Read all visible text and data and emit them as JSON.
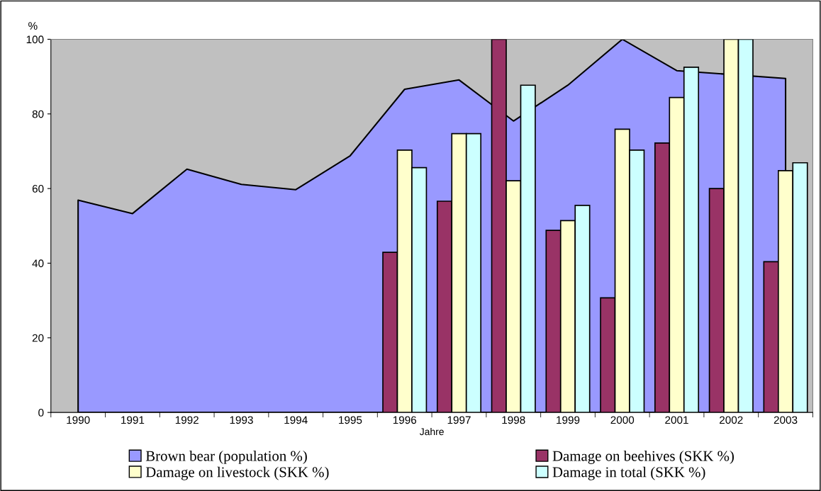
{
  "chart_data": {
    "type": "bar",
    "ylabel": "%",
    "xlabel": "Jahre",
    "categories": [
      "1990",
      "1991",
      "1992",
      "1993",
      "1994",
      "1995",
      "1996",
      "1997",
      "1998",
      "1999",
      "2000",
      "2001",
      "2002",
      "2003"
    ],
    "series": [
      {
        "name": "Brown bear (population %)",
        "type": "area",
        "color": "#9999ff",
        "values": [
          56.9,
          53.3,
          65.2,
          61.1,
          59.7,
          68.8,
          86.6,
          89.1,
          78.1,
          87.7,
          100,
          91.6,
          null,
          89.5
        ]
      },
      {
        "name": "Damage on beehives (SKK %)",
        "color": "#993366",
        "values": [
          null,
          null,
          null,
          null,
          null,
          null,
          42.9,
          56.6,
          100,
          48.8,
          30.7,
          72.2,
          60.0,
          40.4
        ]
      },
      {
        "name": "Damage on livestock (SKK %)",
        "color": "#ffffcc",
        "values": [
          null,
          null,
          null,
          null,
          null,
          null,
          70.3,
          74.7,
          62.1,
          51.4,
          75.9,
          84.4,
          100,
          64.8
        ]
      },
      {
        "name": "Damage in total (SKK %)",
        "color": "#ccffff",
        "values": [
          null,
          null,
          null,
          null,
          null,
          null,
          65.6,
          74.7,
          87.7,
          55.5,
          70.3,
          92.5,
          100,
          66.9
        ]
      }
    ],
    "ylim": [
      0,
      100
    ],
    "yticks": [
      0,
      20,
      40,
      60,
      80,
      100
    ],
    "grid": false,
    "legend": "bottom"
  }
}
